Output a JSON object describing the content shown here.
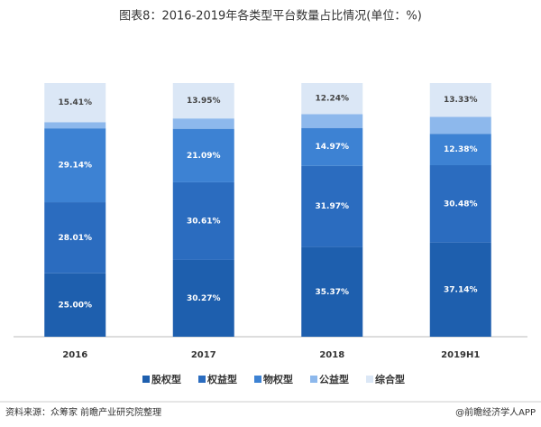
{
  "chart_data": {
    "type": "stacked_bar",
    "title": "图表8：2016-2019年各类型平台数量占比情况(单位：%)",
    "categories": [
      "2016",
      "2017",
      "2018",
      "2019H1"
    ],
    "series": [
      {
        "name": "股权型",
        "color": "#1e5fae",
        "values": [
          25.0,
          30.27,
          35.37,
          37.14
        ],
        "value_labels": [
          "25.00%",
          "30.27%",
          "35.37%",
          "37.14%"
        ]
      },
      {
        "name": "权益型",
        "color": "#2b6cbf",
        "values": [
          28.01,
          30.61,
          31.97,
          30.48
        ],
        "value_labels": [
          "28.01%",
          "30.61%",
          "31.97%",
          "30.48%"
        ]
      },
      {
        "name": "物权型",
        "color": "#3d82d3",
        "values": [
          29.14,
          21.09,
          14.97,
          12.38
        ],
        "value_labels": [
          "29.14%",
          "21.09%",
          "14.97%",
          "12.38%"
        ]
      },
      {
        "name": "公益型",
        "color": "#8db8ec",
        "values": [
          2.44,
          4.08,
          5.45,
          6.67
        ]
      },
      {
        "name": "综合型",
        "color": "#dbe7f6",
        "values": [
          15.41,
          13.95,
          12.24,
          13.33
        ],
        "value_labels": [
          "15.41%",
          "13.95%",
          "12.24%",
          "13.33%"
        ]
      }
    ]
  },
  "footer": {
    "source": "资料来源：众筹家 前瞻产业研究院整理",
    "brand": "@前瞻经济学人APP"
  }
}
